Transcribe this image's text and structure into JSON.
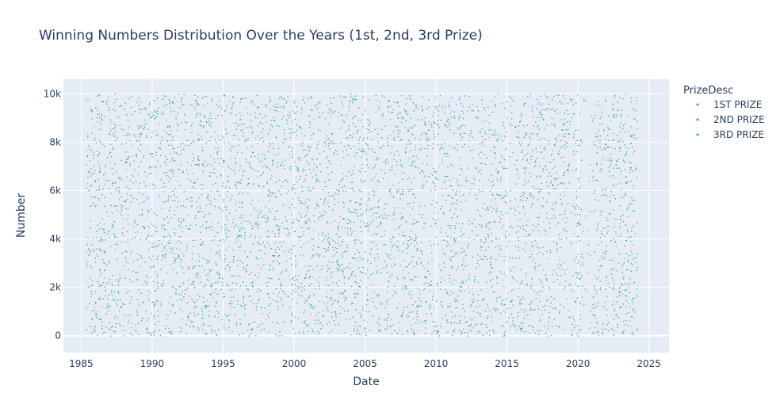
{
  "chart_data": {
    "type": "scatter",
    "title": "Winning Numbers Distribution Over the Years (1st, 2nd, 3rd Prize)",
    "xlabel": "Date",
    "ylabel": "Number",
    "xlim": [
      "1983-10",
      "2026-06"
    ],
    "ylim": [
      -700,
      10600
    ],
    "x_ticks": [
      "1985",
      "1990",
      "1995",
      "2000",
      "2005",
      "2010",
      "2015",
      "2020",
      "2025"
    ],
    "y_ticks": [
      "0",
      "2k",
      "4k",
      "6k",
      "8k",
      "10k"
    ],
    "grid": true,
    "legend_title": "PrizeDesc",
    "legend_position": "right",
    "date_range": [
      "1985-05",
      "2024-03"
    ],
    "number_range": [
      0,
      9999
    ],
    "draws_per_year": 150,
    "series": [
      {
        "name": "1ST PRIZE",
        "color": "#636efa"
      },
      {
        "name": "2ND PRIZE",
        "color": "#ef553b"
      },
      {
        "name": "3RD PRIZE",
        "color": "#00cc96"
      }
    ],
    "colors": {
      "plot_bg": "#e5ecf6",
      "grid": "#ffffff",
      "text": "#2a3f5f"
    }
  }
}
